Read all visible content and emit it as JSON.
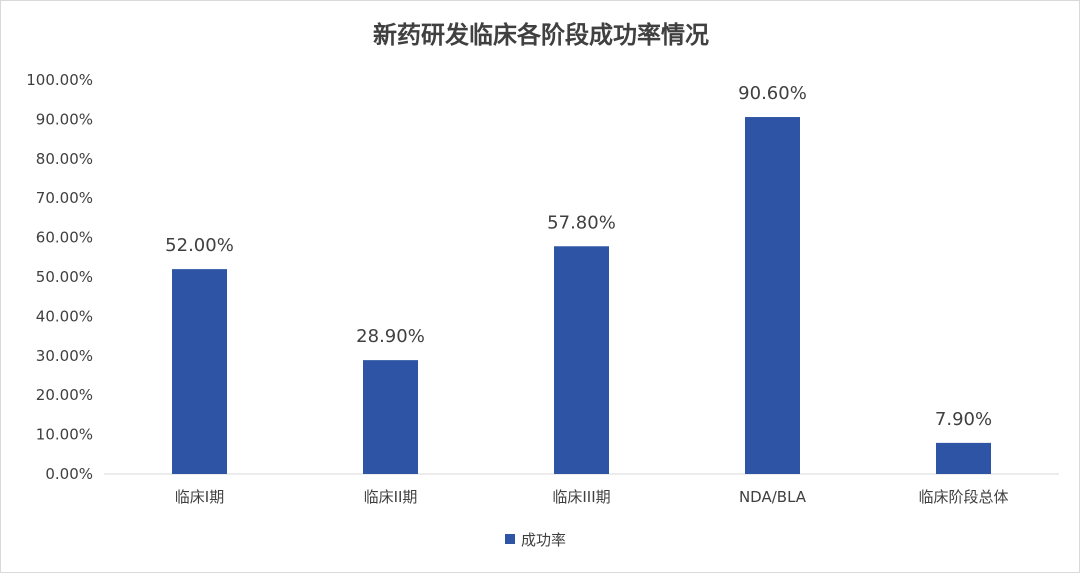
{
  "chart_data": {
    "type": "bar",
    "title": "新药研发临床各阶段成功率情况",
    "categories": [
      "临床I期",
      "临床II期",
      "临床III期",
      "NDA/BLA",
      "临床阶段总体"
    ],
    "series": [
      {
        "name": "成功率",
        "values": [
          52.0,
          28.9,
          57.8,
          90.6,
          7.9
        ],
        "data_labels": [
          "52.00%",
          "28.90%",
          "57.80%",
          "90.60%",
          "7.90%"
        ],
        "color": "#2e55a5"
      }
    ],
    "y_ticks": [
      "0.00%",
      "10.00%",
      "20.00%",
      "30.00%",
      "40.00%",
      "50.00%",
      "60.00%",
      "70.00%",
      "80.00%",
      "90.00%",
      "100.00%"
    ],
    "ylim": [
      0,
      100
    ],
    "grid": false,
    "legend": "bottom",
    "xlabel": "",
    "ylabel": ""
  }
}
